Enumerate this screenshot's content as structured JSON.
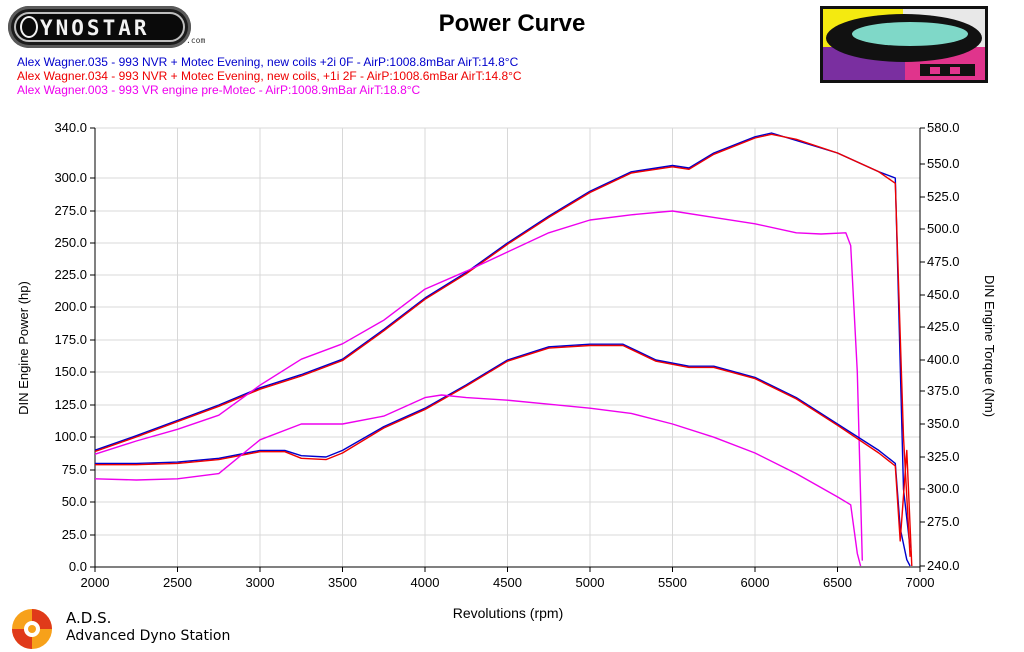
{
  "brand": {
    "logo_text": "YNOSTAR",
    "logo_suffix": ".com",
    "footer_name": "A.D.S.",
    "footer_subtitle": "Advanced Dyno Station"
  },
  "chart_data": {
    "type": "line",
    "title": "Power Curve",
    "xlabel": "Revolutions (rpm)",
    "ylabel": "DIN Engine Power (hp)",
    "y2label": "DIN Engine Torque (Nm)",
    "xlim": [
      2000,
      7000
    ],
    "x_ticks": [
      "2000",
      "2500",
      "3000",
      "3500",
      "4000",
      "4500",
      "5000",
      "5500",
      "6000",
      "6500",
      "7000"
    ],
    "y_ticks": [
      "0.0",
      "25.0",
      "50.0",
      "75.0",
      "100.0",
      "125.0",
      "150.0",
      "175.0",
      "200.0",
      "225.0",
      "250.0",
      "275.0",
      "300.0",
      "340.0"
    ],
    "y2_ticks": [
      "240.0",
      "275.0",
      "300.0",
      "325.0",
      "350.0",
      "375.0",
      "400.0",
      "425.0",
      "450.0",
      "475.0",
      "500.0",
      "525.0",
      "550.0",
      "580.0"
    ],
    "legend": [
      {
        "text": "Alex Wagner.035 - 993 NVR + Motec  Evening, new coils +2i 0F  - AirP:1008.8mBar AirT:14.8°C",
        "color": "#0000cc"
      },
      {
        "text": "Alex Wagner.034 - 993 NVR + Motec  Evening, new coils, +1i 2F  - AirP:1008.6mBar AirT:14.8°C",
        "color": "#ee0000"
      },
      {
        "text": "Alex Wagner.003 - 993 VR engine pre-Motec  - AirP:1008.9mBar AirT:18.8°C",
        "color": "#ee00ee"
      }
    ],
    "series": [
      {
        "name": "Alex Wagner.035 power",
        "color": "#0000cc",
        "x": [
          2000,
          2250,
          2500,
          2750,
          3000,
          3250,
          3500,
          3750,
          4000,
          4250,
          4500,
          4750,
          5000,
          5250,
          5500,
          5600,
          5750,
          6000,
          6100,
          6250,
          6500,
          6750,
          6850,
          6900,
          6940
        ],
        "y": [
          90,
          101,
          113,
          125,
          138,
          148,
          160,
          183,
          207,
          227,
          250,
          271,
          290,
          305,
          310,
          308,
          320,
          333,
          336,
          330,
          320,
          305,
          300,
          60,
          15
        ]
      },
      {
        "name": "Alex Wagner.034 power",
        "color": "#ee0000",
        "x": [
          2000,
          2250,
          2500,
          2750,
          3000,
          3250,
          3500,
          3750,
          4000,
          4250,
          4500,
          4750,
          5000,
          5250,
          5500,
          5600,
          5750,
          6000,
          6100,
          6250,
          6500,
          6750,
          6850,
          6900,
          6940
        ],
        "y": [
          89,
          100,
          112,
          124,
          137,
          147,
          159,
          182,
          206,
          226,
          249,
          270,
          289,
          304,
          309,
          307,
          319,
          332,
          335,
          331,
          320,
          305,
          296,
          100,
          8
        ]
      },
      {
        "name": "Alex Wagner.003 power",
        "color": "#ee00ee",
        "x": [
          2000,
          2250,
          2500,
          2750,
          3000,
          3250,
          3500,
          3750,
          4000,
          4250,
          4500,
          4750,
          5000,
          5250,
          5500,
          5750,
          6000,
          6250,
          6400,
          6550,
          6580,
          6620,
          6650
        ],
        "y": [
          87,
          97,
          106,
          117,
          140,
          160,
          172,
          190,
          214,
          228,
          243,
          258,
          268,
          272,
          275,
          270,
          265,
          258,
          257,
          258,
          248,
          150,
          5
        ]
      },
      {
        "name": "Alex Wagner.035 torque",
        "color": "#0000cc",
        "x": [
          2000,
          2250,
          2500,
          2750,
          3000,
          3150,
          3250,
          3400,
          3500,
          3750,
          4000,
          4250,
          4500,
          4750,
          5000,
          5200,
          5400,
          5600,
          5750,
          6000,
          6250,
          6500,
          6750,
          6850,
          6880,
          6920,
          6940
        ],
        "y": [
          320,
          320,
          321,
          324,
          330,
          330,
          326,
          325,
          330,
          348,
          362,
          380,
          400,
          410,
          412,
          412,
          400,
          395,
          395,
          386,
          370,
          350,
          330,
          320,
          270,
          245,
          240
        ]
      },
      {
        "name": "Alex Wagner.034 torque",
        "color": "#ee0000",
        "x": [
          2000,
          2250,
          2500,
          2750,
          3000,
          3150,
          3250,
          3400,
          3500,
          3750,
          4000,
          4250,
          4500,
          4750,
          5000,
          5200,
          5400,
          5600,
          5750,
          6000,
          6250,
          6500,
          6750,
          6850,
          6880,
          6920,
          6950
        ],
        "y": [
          319,
          319,
          320,
          323,
          329,
          329,
          324,
          323,
          328,
          347,
          361,
          379,
          399,
          409,
          411,
          411,
          399,
          394,
          394,
          385,
          369,
          349,
          328,
          318,
          260,
          330,
          240
        ]
      },
      {
        "name": "Alex Wagner.003 torque",
        "color": "#ee00ee",
        "x": [
          2000,
          2250,
          2500,
          2750,
          3000,
          3250,
          3500,
          3750,
          4000,
          4100,
          4250,
          4500,
          4750,
          5000,
          5250,
          5500,
          5750,
          6000,
          6250,
          6500,
          6580,
          6620,
          6640
        ],
        "y": [
          308,
          307,
          308,
          312,
          338,
          350,
          350,
          356,
          370,
          372,
          370,
          368,
          365,
          362,
          358,
          350,
          340,
          328,
          312,
          294,
          288,
          250,
          240
        ]
      }
    ]
  }
}
